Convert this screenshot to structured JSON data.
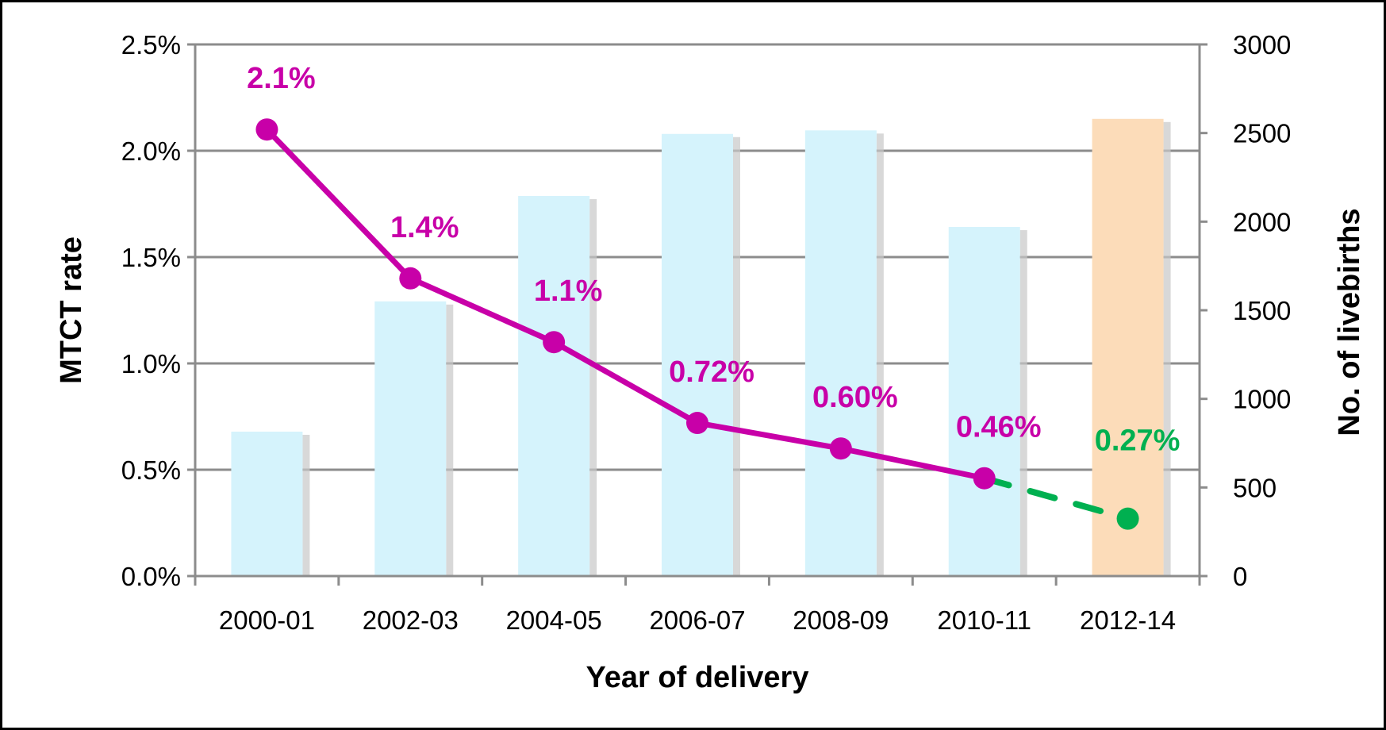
{
  "chart_data": {
    "type": "bar+line",
    "categories": [
      "2000-01",
      "2002-03",
      "2004-05",
      "2006-07",
      "2008-09",
      "2010-11",
      "2012-14"
    ],
    "xlabel": "Year of delivery",
    "ylabel_left": "MTCT rate",
    "ylabel_right": "No. of livebirths",
    "ylim_left": [
      0,
      2.5
    ],
    "ylim_right": [
      0,
      3000
    ],
    "left_ticks": [
      "0.0%",
      "0.5%",
      "1.0%",
      "1.5%",
      "2.0%",
      "2.5%"
    ],
    "right_ticks": [
      "0",
      "500",
      "1000",
      "1500",
      "2000",
      "2500",
      "3000"
    ],
    "grid": true,
    "bars": {
      "axis": "right",
      "values": [
        815,
        1550,
        2145,
        2495,
        2515,
        1970,
        2580
      ],
      "colors": [
        "#d5f3fc",
        "#d5f3fc",
        "#d5f3fc",
        "#d5f3fc",
        "#d5f3fc",
        "#d5f3fc",
        "#fcdcb9"
      ]
    },
    "line": {
      "axis": "left",
      "values": [
        2.1,
        1.4,
        1.1,
        0.72,
        0.6,
        0.46
      ],
      "labels": [
        "2.1%",
        "1.4%",
        "1.1%",
        "0.72%",
        "0.60%",
        "0.46%"
      ],
      "color": "#c800a8"
    },
    "projection": {
      "axis": "left",
      "from_category": "2010-11",
      "category": "2012-14",
      "value": 0.27,
      "label": "0.27%",
      "style": "dashed",
      "color": "#00b050"
    }
  }
}
